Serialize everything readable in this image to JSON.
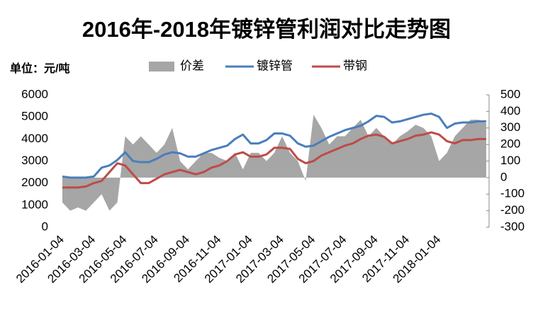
{
  "chart_data": {
    "type": "line",
    "title": "2016年-2018年镀锌管利润对比走势图",
    "unit_label": "单位：元/吨",
    "categories": [
      "2016-01-04",
      null,
      null,
      null,
      "2016-03-04",
      null,
      null,
      null,
      "2016-05-04",
      null,
      null,
      null,
      "2016-07-04",
      null,
      null,
      null,
      "2016-09-04",
      null,
      null,
      null,
      "2016-11-04",
      null,
      null,
      null,
      "2017-01-04",
      null,
      null,
      null,
      "2017-03-04",
      null,
      null,
      null,
      "2017-05-04",
      null,
      null,
      null,
      "2017-07-04",
      null,
      null,
      null,
      "2017-09-04",
      null,
      null,
      null,
      "2017-11-04",
      null,
      null,
      null,
      "2018-01-04",
      null,
      null,
      null,
      null,
      null,
      null
    ],
    "series": [
      {
        "name": "价差",
        "type": "area",
        "axis": "y2",
        "color": "#a6a6a6",
        "values": [
          -150,
          -200,
          -180,
          -200,
          -150,
          -100,
          -200,
          -150,
          250,
          200,
          250,
          200,
          150,
          200,
          300,
          100,
          50,
          100,
          150,
          150,
          120,
          100,
          150,
          50,
          150,
          150,
          100,
          150,
          250,
          150,
          100,
          -20,
          380,
          300,
          200,
          250,
          250,
          300,
          350,
          250,
          300,
          250,
          200,
          250,
          280,
          320,
          300,
          250,
          100,
          150,
          250,
          300,
          350,
          350,
          330
        ]
      },
      {
        "name": "镀锌管",
        "type": "line",
        "color": "#4a7ebb",
        "values": [
          2300,
          2250,
          2250,
          2250,
          2300,
          2700,
          2800,
          3050,
          3400,
          3000,
          2950,
          2950,
          3100,
          3300,
          3400,
          3350,
          3200,
          3200,
          3350,
          3500,
          3600,
          3700,
          4000,
          4200,
          3800,
          3800,
          3950,
          4250,
          4250,
          4150,
          3800,
          3650,
          3700,
          3900,
          4100,
          4250,
          4400,
          4500,
          4600,
          4800,
          5050,
          5000,
          4750,
          4800,
          4900,
          5000,
          5100,
          5150,
          5000,
          4500,
          4700,
          4750,
          4750,
          4800,
          4800
        ]
      },
      {
        "name": "带钢",
        "type": "line",
        "color": "#be4b48",
        "values": [
          1800,
          1800,
          1800,
          1850,
          2000,
          2100,
          2500,
          2900,
          2800,
          2400,
          2000,
          2000,
          2200,
          2400,
          2500,
          2600,
          2500,
          2400,
          2500,
          2700,
          2800,
          3000,
          3300,
          3400,
          3200,
          3200,
          3300,
          3600,
          3600,
          3550,
          3100,
          2900,
          3000,
          3250,
          3400,
          3550,
          3700,
          3800,
          4000,
          4150,
          4200,
          4100,
          3800,
          3900,
          4000,
          4150,
          4200,
          4300,
          4200,
          3900,
          3800,
          3950,
          3950,
          4000,
          4000
        ]
      }
    ],
    "ylim": [
      0,
      6000
    ],
    "yticks": [
      0,
      1000,
      2000,
      3000,
      4000,
      5000,
      6000
    ],
    "y2lim": [
      -300,
      500
    ],
    "y2ticks": [
      -300,
      -200,
      -100,
      0,
      100,
      200,
      300,
      400,
      500
    ],
    "legend": "top",
    "grid": false
  }
}
